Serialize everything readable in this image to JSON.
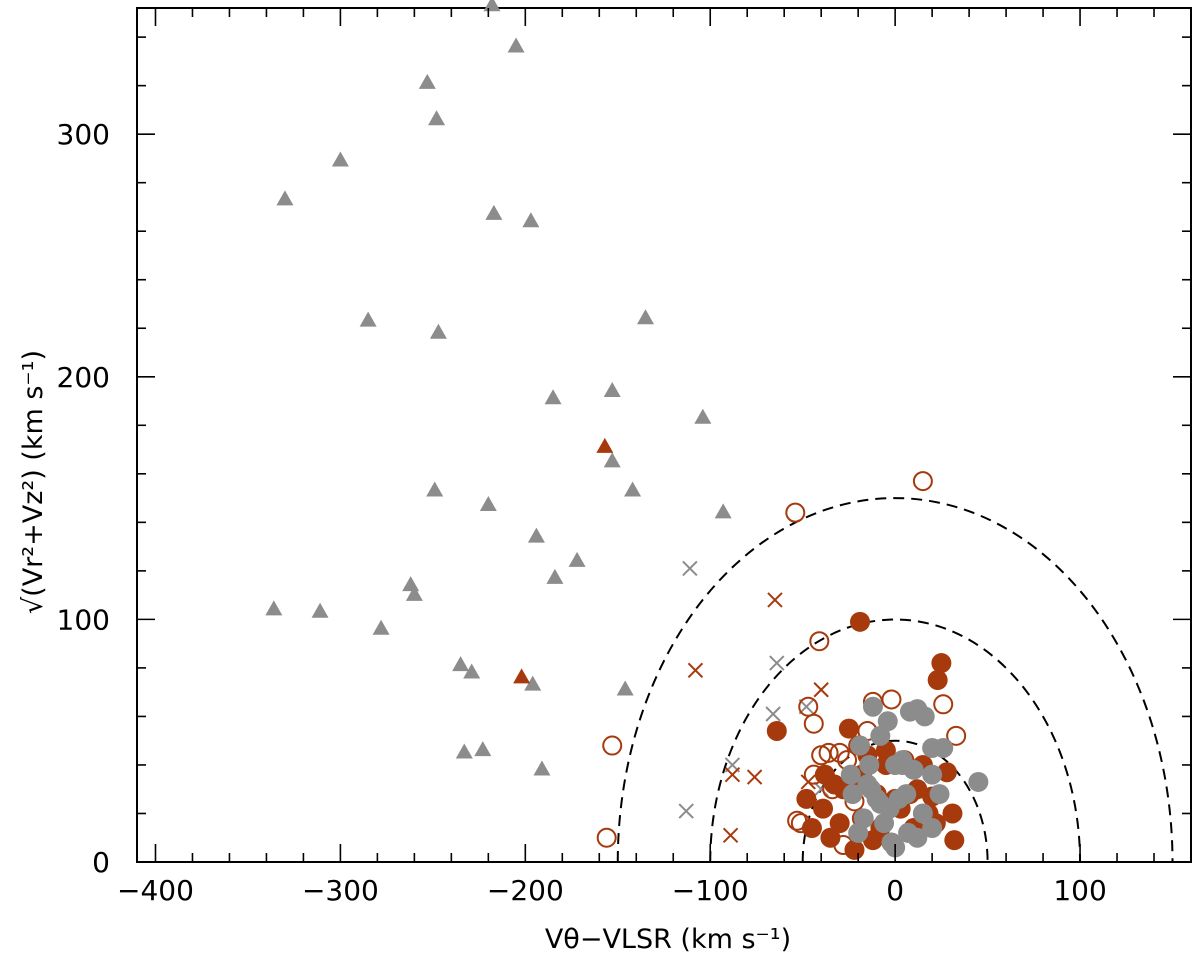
{
  "chart_data": {
    "type": "scatter",
    "xlim": [
      -410,
      160
    ],
    "ylim": [
      0,
      352
    ],
    "x_ticks": [
      -400,
      -300,
      -200,
      -100,
      0,
      100
    ],
    "x_tick_labels": [
      "−400",
      "−300",
      "−200",
      "−100",
      "0",
      "100"
    ],
    "y_ticks": [
      0,
      100,
      200,
      300
    ],
    "y_tick_labels": [
      "0",
      "100",
      "200",
      "300"
    ],
    "xlabel": "Vθ−VLSR (km s⁻¹)",
    "ylabel": "√(Vr²+Vz²) (km s⁻¹)",
    "grid": false,
    "colors": {
      "rust": "#a63a0c",
      "gray": "#8c8c8c",
      "ink": "#000000"
    },
    "reference_curves": [
      {
        "shape": "semicircle",
        "center": [
          0,
          0
        ],
        "radius": 50,
        "style": "dashed"
      },
      {
        "shape": "semicircle",
        "center": [
          0,
          0
        ],
        "radius": 100,
        "style": "dashed"
      },
      {
        "shape": "semicircle",
        "center": [
          0,
          0
        ],
        "radius": 150,
        "style": "dashed"
      }
    ],
    "series": [
      {
        "marker": "triangle",
        "color": "#8c8c8c",
        "x": [
          -218,
          -205,
          -253,
          -248,
          -300,
          -330,
          -217,
          -197,
          -285,
          -247,
          -135,
          -185,
          -153,
          -104,
          -249,
          -220,
          -153,
          -142,
          -194,
          -172,
          -184,
          -93,
          -262,
          -260,
          -336,
          -311,
          -278,
          -235,
          -229,
          -196,
          -146,
          -233,
          -223,
          -191
        ],
        "y": [
          353,
          336,
          321,
          306,
          289,
          273,
          267,
          264,
          223,
          218,
          224,
          191,
          194,
          183,
          153,
          147,
          165,
          153,
          134,
          124,
          117,
          144,
          114,
          110,
          104,
          103,
          96,
          81,
          78,
          73,
          71,
          45,
          46,
          38
        ]
      },
      {
        "marker": "triangle",
        "color": "#a63a0c",
        "x": [
          -157,
          -202
        ],
        "y": [
          171,
          76
        ]
      },
      {
        "marker": "cross",
        "color": "#8c8c8c",
        "x": [
          -111,
          -64,
          -66,
          -48,
          -88,
          -40,
          -113
        ],
        "y": [
          121,
          82,
          61,
          64,
          40,
          30,
          21
        ]
      },
      {
        "marker": "cross",
        "color": "#a63a0c",
        "x": [
          -65,
          -108,
          -40,
          -47,
          -88,
          -76,
          -89
        ],
        "y": [
          108,
          79,
          71,
          33,
          36,
          35,
          11
        ]
      },
      {
        "marker": "circle-open",
        "color": "#a63a0c",
        "x": [
          15,
          -54,
          -41,
          -153,
          -156,
          -53,
          -12,
          -2,
          26,
          33,
          -47,
          -44,
          -40,
          -36,
          -30,
          -26,
          -20,
          -15,
          -44,
          -34,
          -22,
          -51,
          -28
        ],
        "y": [
          157,
          144,
          91,
          48,
          10,
          17,
          66,
          67,
          65,
          52,
          64,
          57,
          44,
          45,
          45,
          42,
          48,
          54,
          36,
          30,
          25,
          16,
          7
        ]
      },
      {
        "marker": "circle-filled",
        "color": "#a63a0c",
        "x": [
          -19,
          25,
          23,
          -64,
          -25,
          -15,
          -5,
          5,
          15,
          28,
          -38,
          -33,
          -28,
          -20,
          -10,
          0,
          12,
          20,
          -48,
          -39,
          -30,
          -18,
          -8,
          3,
          18,
          31,
          -45,
          -35,
          -22,
          -12,
          -2,
          10,
          22,
          32,
          -18,
          -5,
          8,
          18
        ],
        "y": [
          99,
          82,
          75,
          54,
          55,
          44,
          46,
          42,
          40,
          37,
          36,
          32,
          30,
          34,
          28,
          26,
          30,
          27,
          26,
          22,
          16,
          18,
          14,
          22,
          20,
          20,
          14,
          10,
          5,
          9,
          8,
          14,
          16,
          9,
          36,
          40,
          28,
          20
        ]
      },
      {
        "marker": "circle-filled",
        "color": "#8c8c8c",
        "x": [
          -12,
          8,
          12,
          -4,
          16,
          20,
          26,
          -19,
          -8,
          4,
          -24,
          -14,
          0,
          10,
          20,
          24,
          -3,
          45,
          -23,
          -13,
          -8,
          2,
          15,
          -17,
          -6,
          7,
          -20,
          -2,
          12,
          20,
          -15,
          4,
          -10,
          0,
          6
        ],
        "y": [
          64,
          62,
          63,
          58,
          60,
          47,
          47,
          48,
          52,
          42,
          36,
          40,
          40,
          38,
          36,
          28,
          22,
          33,
          28,
          30,
          24,
          26,
          20,
          18,
          16,
          12,
          12,
          8,
          10,
          14,
          32,
          40,
          26,
          6,
          28
        ]
      }
    ]
  }
}
